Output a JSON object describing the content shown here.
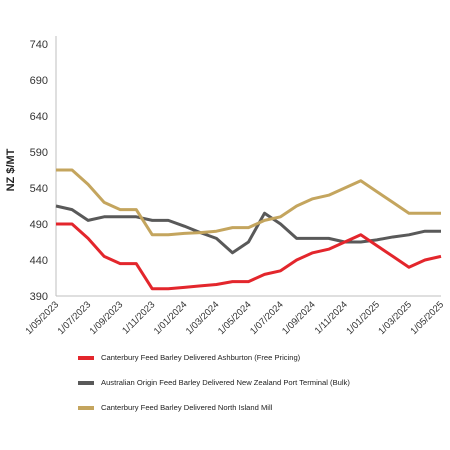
{
  "chart_data": {
    "type": "line",
    "ylabel": "NZ $/MT",
    "ylim": [
      390,
      740
    ],
    "yticks": [
      390,
      440,
      490,
      540,
      590,
      640,
      690,
      740
    ],
    "x": [
      "1/05/2023",
      "1/06/2023",
      "1/07/2023",
      "1/08/2023",
      "1/09/2023",
      "1/10/2023",
      "1/11/2023",
      "1/12/2023",
      "1/01/2024",
      "1/02/2024",
      "1/03/2024",
      "1/04/2024",
      "1/05/2024",
      "1/06/2024",
      "1/07/2024",
      "1/08/2024",
      "1/09/2024",
      "1/10/2024",
      "1/11/2024",
      "1/12/2024",
      "1/01/2025",
      "1/02/2025",
      "1/03/2025",
      "1/04/2025",
      "1/05/2025"
    ],
    "xtick_labels": [
      "1/05/2023",
      "1/07/2023",
      "1/09/2023",
      "1/11/2023",
      "1/01/2024",
      "1/03/2024",
      "1/05/2024",
      "1/07/2024",
      "1/09/2024",
      "1/11/2024",
      "1/01/2025",
      "1/03/2025",
      "1/05/2025"
    ],
    "grid": false,
    "legend_position": "bottom",
    "series": [
      {
        "name": "Canterbury Feed Barley Delivered Ashburton (Free Pricing)",
        "color": "#e3262c",
        "values": [
          490,
          490,
          470,
          445,
          435,
          435,
          400,
          400,
          402,
          404,
          406,
          410,
          410,
          420,
          425,
          440,
          450,
          455,
          465,
          475,
          460,
          445,
          430,
          440,
          445
        ]
      },
      {
        "name": "Australian Origin Feed Barley Delivered New Zealand Port Terminal (Bulk)",
        "color": "#595959",
        "values": [
          515,
          510,
          495,
          500,
          500,
          500,
          495,
          495,
          487,
          478,
          470,
          450,
          465,
          505,
          490,
          470,
          470,
          470,
          465,
          465,
          468,
          472,
          475,
          480,
          480
        ]
      },
      {
        "name": "Canterbury Feed Barley Delivered North Island Mill",
        "color": "#c4a55e",
        "values": [
          565,
          565,
          545,
          520,
          510,
          510,
          475,
          475,
          477,
          478,
          480,
          485,
          485,
          495,
          500,
          515,
          525,
          530,
          540,
          550,
          535,
          520,
          505,
          505,
          505
        ]
      }
    ]
  }
}
